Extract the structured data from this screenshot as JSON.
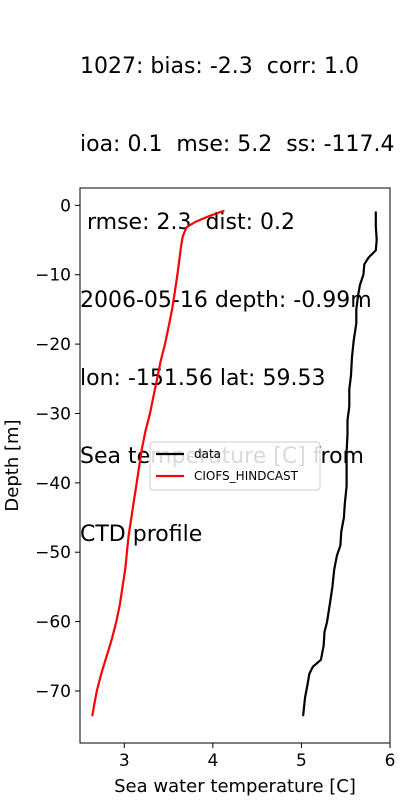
{
  "title_lines": [
    "1027: bias: -2.3  corr: 1.0",
    "ioa: 0.1  mse: 5.2  ss: -117.4",
    " rmse: 2.3  dist: 0.2",
    "2006-05-16 depth: -0.99m",
    "lon: -151.56 lat: 59.53",
    "Sea temperature [C] from",
    "CTD profile"
  ],
  "chart_data": {
    "type": "line",
    "xlabel": "Sea water temperature [C]",
    "ylabel": "Depth [m]",
    "xlim": [
      2.5,
      6.0
    ],
    "ylim": [
      -77.5,
      2.5
    ],
    "xticks": [
      3,
      4,
      5,
      6
    ],
    "yticks": [
      0,
      -10,
      -20,
      -30,
      -40,
      -50,
      -60,
      -70
    ],
    "legend_position": "center-left",
    "grid": false,
    "series": [
      {
        "name": "data",
        "color": "#000000",
        "points": [
          [
            5.84,
            -1.0
          ],
          [
            5.84,
            -3.0
          ],
          [
            5.85,
            -5.0
          ],
          [
            5.84,
            -6.5
          ],
          [
            5.76,
            -7.5
          ],
          [
            5.71,
            -8.5
          ],
          [
            5.7,
            -10.0
          ],
          [
            5.66,
            -11.5
          ],
          [
            5.64,
            -13.0
          ],
          [
            5.62,
            -15.0
          ],
          [
            5.62,
            -17.0
          ],
          [
            5.59,
            -19.5
          ],
          [
            5.57,
            -22.0
          ],
          [
            5.56,
            -24.5
          ],
          [
            5.54,
            -26.5
          ],
          [
            5.54,
            -29.0
          ],
          [
            5.52,
            -31.0
          ],
          [
            5.52,
            -33.0
          ],
          [
            5.51,
            -35.5
          ],
          [
            5.51,
            -38.0
          ],
          [
            5.51,
            -40.5
          ],
          [
            5.49,
            -43.0
          ],
          [
            5.48,
            -45.0
          ],
          [
            5.45,
            -47.0
          ],
          [
            5.44,
            -49.0
          ],
          [
            5.4,
            -50.5
          ],
          [
            5.37,
            -52.5
          ],
          [
            5.35,
            -55.0
          ],
          [
            5.32,
            -57.5
          ],
          [
            5.29,
            -60.0
          ],
          [
            5.26,
            -61.5
          ],
          [
            5.25,
            -63.5
          ],
          [
            5.22,
            -65.5
          ],
          [
            5.13,
            -66.5
          ],
          [
            5.09,
            -67.5
          ],
          [
            5.07,
            -69.0
          ],
          [
            5.04,
            -71.0
          ],
          [
            5.02,
            -73.5
          ]
        ]
      },
      {
        "name": "CIOFS_HINDCAST",
        "color": "#ff0000",
        "points": [
          [
            4.12,
            -0.8
          ],
          [
            3.95,
            -1.6
          ],
          [
            3.8,
            -2.4
          ],
          [
            3.7,
            -3.2
          ],
          [
            3.66,
            -4.5
          ],
          [
            3.64,
            -6.0
          ],
          [
            3.62,
            -8.0
          ],
          [
            3.6,
            -10.0
          ],
          [
            3.57,
            -12.5
          ],
          [
            3.54,
            -15.0
          ],
          [
            3.5,
            -17.5
          ],
          [
            3.46,
            -20.0
          ],
          [
            3.41,
            -22.5
          ],
          [
            3.37,
            -25.0
          ],
          [
            3.33,
            -27.5
          ],
          [
            3.29,
            -30.0
          ],
          [
            3.24,
            -32.5
          ],
          [
            3.2,
            -35.0
          ],
          [
            3.17,
            -37.5
          ],
          [
            3.14,
            -40.0
          ],
          [
            3.11,
            -42.5
          ],
          [
            3.08,
            -45.0
          ],
          [
            3.05,
            -47.5
          ],
          [
            3.03,
            -50.0
          ],
          [
            3.01,
            -52.5
          ],
          [
            2.98,
            -55.0
          ],
          [
            2.95,
            -57.5
          ],
          [
            2.91,
            -60.0
          ],
          [
            2.86,
            -62.5
          ],
          [
            2.8,
            -65.0
          ],
          [
            2.74,
            -67.5
          ],
          [
            2.69,
            -70.0
          ],
          [
            2.66,
            -72.0
          ],
          [
            2.64,
            -73.5
          ]
        ]
      }
    ]
  }
}
